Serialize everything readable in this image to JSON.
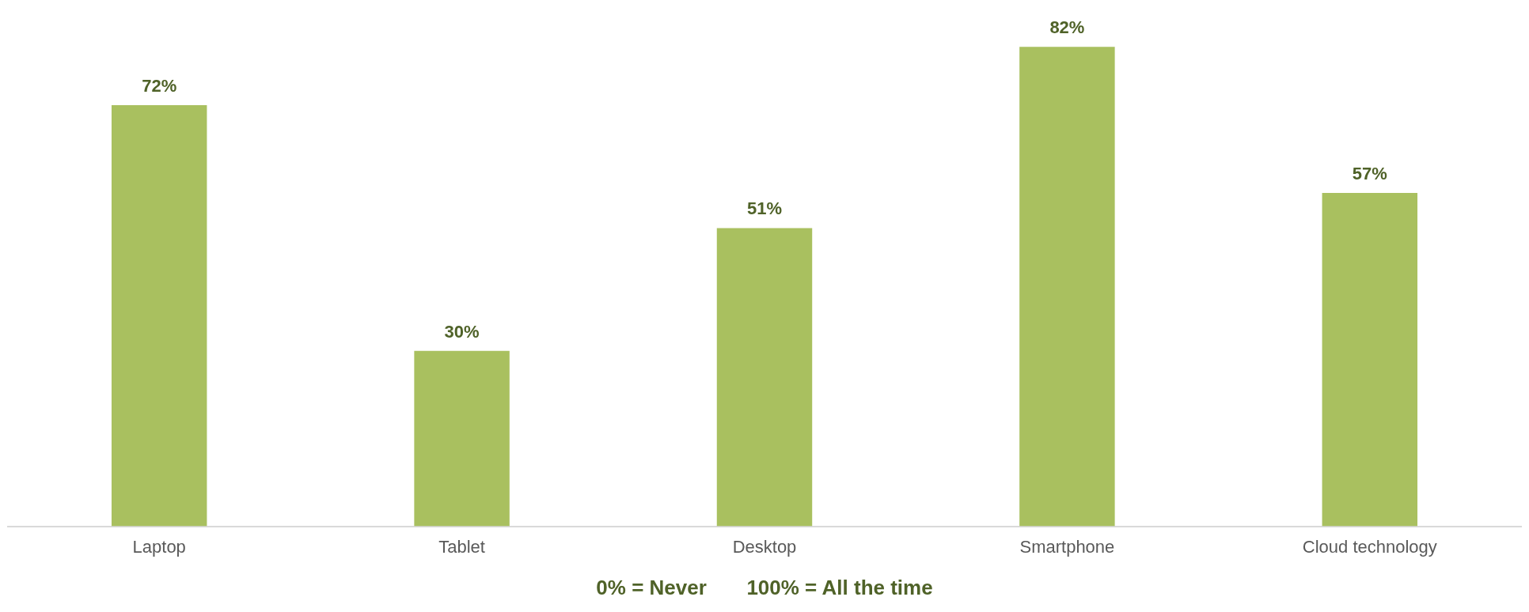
{
  "chart_data": {
    "type": "bar",
    "categories": [
      "Laptop",
      "Tablet",
      "Desktop",
      "Smartphone",
      "Cloud technology"
    ],
    "values": [
      72,
      30,
      51,
      82,
      57
    ],
    "value_labels": [
      "72%",
      "30%",
      "51%",
      "82%",
      "57%"
    ],
    "color": "#a9c05f",
    "tick_labels": "x",
    "annotations": [
      "0% = Never       100% = All the time"
    ]
  }
}
